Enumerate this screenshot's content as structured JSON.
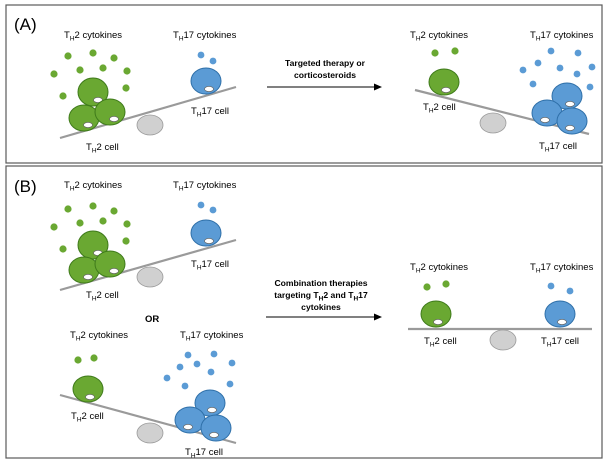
{
  "panel_a": {
    "label": "(A)",
    "left": {
      "th2_cytokines": [
        "T",
        "H",
        "2 cytokines"
      ],
      "th17_cytokines": [
        "T",
        "H",
        "17 cytokines"
      ],
      "th2_cell": [
        "T",
        "H",
        "2 cell"
      ],
      "th17_cell": [
        "T",
        "H",
        "17 cell"
      ]
    },
    "arrow_text": [
      "Targeted therapy or",
      "corticosteroids"
    ],
    "right": {
      "th2_cytokines": [
        "T",
        "H",
        "2 cytokines"
      ],
      "th17_cytokines": [
        "T",
        "H",
        "17 cytokines"
      ],
      "th2_cell": [
        "T",
        "H",
        "2 cell"
      ],
      "th17_cell": [
        "T",
        "H",
        "17 cell"
      ]
    }
  },
  "panel_b": {
    "label": "(B)",
    "top": {
      "th2_cytokines": [
        "T",
        "H",
        "2 cytokines"
      ],
      "th17_cytokines": [
        "T",
        "H",
        "17 cytokines"
      ],
      "th2_cell": [
        "T",
        "H",
        "2 cell"
      ],
      "th17_cell": [
        "T",
        "H",
        "17 cell"
      ]
    },
    "or_text": "OR",
    "bottom": {
      "th2_cytokines": [
        "T",
        "H",
        "2 cytokines"
      ],
      "th17_cytokines": [
        "T",
        "H",
        "17 cytokines"
      ],
      "th2_cell": [
        "T",
        "H",
        "2 cell"
      ],
      "th17_cell": [
        "T",
        "H",
        "17 cell"
      ]
    },
    "arrow_text_1": "Combination therapies",
    "arrow_text_2": [
      "targeting T",
      "H",
      "2 and T",
      "H",
      "17"
    ],
    "arrow_text_3": "cytokines",
    "right": {
      "th2_cytokines": [
        "T",
        "H",
        "2 cytokines"
      ],
      "th17_cytokines": [
        "T",
        "H",
        "17 cytokines"
      ],
      "th2_cell": [
        "T",
        "H",
        "2 cell"
      ],
      "th17_cell": [
        "T",
        "H",
        "17 cell"
      ]
    }
  },
  "colors": {
    "th2": "#6aa832",
    "th17": "#5b9bd5",
    "fulcrum": "#d0d0d0",
    "beam": "#9a9a9a"
  }
}
